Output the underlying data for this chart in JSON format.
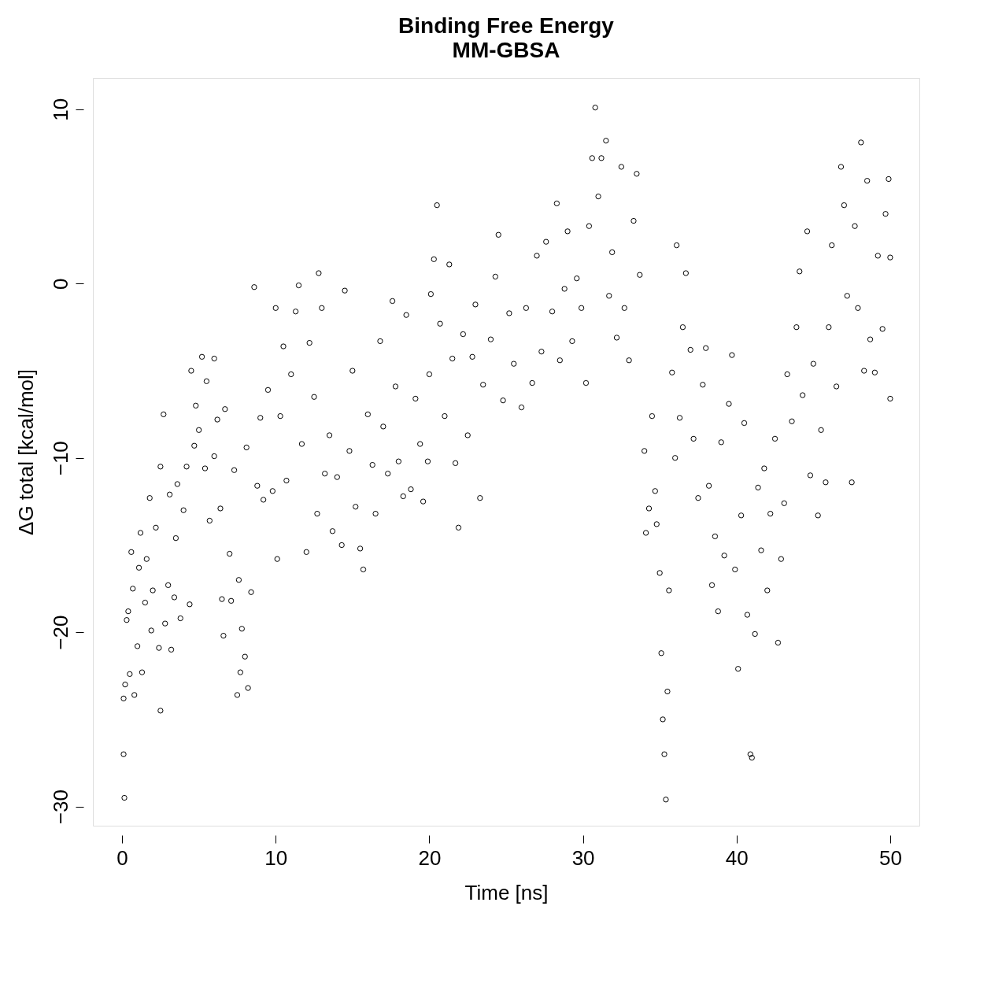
{
  "chart_data": {
    "type": "scatter",
    "title": "Binding Free Energy",
    "subtitle": "MM-GBSA",
    "xlabel": "Time [ns]",
    "ylabel": "ΔG total [kcal/mol]",
    "xlim": [
      -1.9,
      51.9
    ],
    "ylim": [
      -31.1,
      11.8
    ],
    "xticks": [
      0,
      10,
      20,
      30,
      40,
      50
    ],
    "yticks": [
      -30,
      -20,
      -10,
      0,
      10
    ],
    "grid": false,
    "marker": "circle",
    "series": [
      {
        "color": "#000000",
        "x": [
          0.1,
          0.15,
          0.1,
          0.2,
          0.3,
          0.4,
          0.5,
          0.6,
          0.7,
          0.8,
          1.0,
          1.1,
          1.2,
          1.3,
          1.5,
          1.6,
          1.8,
          1.9,
          2.0,
          2.2,
          2.4,
          2.5,
          2.5,
          2.7,
          2.8,
          3.0,
          3.1,
          3.2,
          3.4,
          3.5,
          3.6,
          3.8,
          4.0,
          4.2,
          4.4,
          4.5,
          4.7,
          4.8,
          5.0,
          5.2,
          5.4,
          5.5,
          5.7,
          6.0,
          6.0,
          6.2,
          6.4,
          6.5,
          6.6,
          6.7,
          7.0,
          7.1,
          7.3,
          7.5,
          7.6,
          7.7,
          7.8,
          8.0,
          8.1,
          8.2,
          8.4,
          8.6,
          8.8,
          9.0,
          9.2,
          9.5,
          9.8,
          10.0,
          10.1,
          10.3,
          10.5,
          10.7,
          11.0,
          11.3,
          11.5,
          11.7,
          12.0,
          12.2,
          12.5,
          12.7,
          12.8,
          13.0,
          13.2,
          13.5,
          13.7,
          14.0,
          14.3,
          14.5,
          14.8,
          15.0,
          15.2,
          15.5,
          15.7,
          16.0,
          16.3,
          16.5,
          16.8,
          17.0,
          17.3,
          17.6,
          17.8,
          18.0,
          18.3,
          18.5,
          18.8,
          19.1,
          19.4,
          19.6,
          19.9,
          20.0,
          20.1,
          20.3,
          20.5,
          20.7,
          21.0,
          21.3,
          21.5,
          21.7,
          21.9,
          22.2,
          22.5,
          22.8,
          23.0,
          23.3,
          23.5,
          24.0,
          24.3,
          24.5,
          24.8,
          25.2,
          25.5,
          26.0,
          26.3,
          26.7,
          27.0,
          27.3,
          27.6,
          28.0,
          28.3,
          28.5,
          28.8,
          29.0,
          29.3,
          29.6,
          29.9,
          30.2,
          30.4,
          30.6,
          30.8,
          31.0,
          31.2,
          31.5,
          31.7,
          31.9,
          32.2,
          32.5,
          32.7,
          33.0,
          33.3,
          33.5,
          33.7,
          34.0,
          34.1,
          34.3,
          34.5,
          34.7,
          34.8,
          35.0,
          35.1,
          35.2,
          35.3,
          35.4,
          35.5,
          35.6,
          35.8,
          36.0,
          36.1,
          36.3,
          36.5,
          36.7,
          37.0,
          37.2,
          37.5,
          37.8,
          38.0,
          38.2,
          38.4,
          38.6,
          38.8,
          39.0,
          39.2,
          39.5,
          39.7,
          39.9,
          40.1,
          40.3,
          40.5,
          40.7,
          40.9,
          41.0,
          41.2,
          41.4,
          41.6,
          41.8,
          42.0,
          42.2,
          42.5,
          42.7,
          42.9,
          43.1,
          43.3,
          43.6,
          43.9,
          44.1,
          44.3,
          44.6,
          44.8,
          45.0,
          45.3,
          45.5,
          45.8,
          46.0,
          46.2,
          46.5,
          46.8,
          47.0,
          47.2,
          47.5,
          47.7,
          47.9,
          48.1,
          48.3,
          48.5,
          48.7,
          49.0,
          49.2,
          49.5,
          49.7,
          49.9,
          50.0,
          50.0
        ],
        "values": [
          -27,
          -29.5,
          -23.8,
          -23,
          -19.3,
          -18.8,
          -22.4,
          -15.4,
          -17.5,
          -23.6,
          -20.8,
          -16.3,
          -14.3,
          -22.3,
          -18.3,
          -15.8,
          -12.3,
          -19.9,
          -17.6,
          -14,
          -20.9,
          -10.5,
          -24.5,
          -7.5,
          -19.5,
          -17.3,
          -12.1,
          -21,
          -18,
          -14.6,
          -11.5,
          -19.2,
          -13,
          -10.5,
          -18.4,
          -5,
          -9.3,
          -7,
          -8.4,
          -4.2,
          -10.6,
          -5.6,
          -13.6,
          -9.9,
          -4.3,
          -7.8,
          -12.9,
          -18.1,
          -20.2,
          -7.2,
          -15.5,
          -18.2,
          -10.7,
          -23.6,
          -17,
          -22.3,
          -19.8,
          -21.4,
          -9.4,
          -23.2,
          -17.7,
          -0.2,
          -11.6,
          -7.7,
          -12.4,
          -6.1,
          -11.9,
          -1.4,
          -15.8,
          -7.6,
          -3.6,
          -11.3,
          -5.2,
          -1.6,
          -0.1,
          -9.2,
          -15.4,
          -3.4,
          -6.5,
          -13.2,
          0.6,
          -1.4,
          -10.9,
          -8.7,
          -14.2,
          -11.1,
          -15,
          -0.4,
          -9.6,
          -5,
          -12.8,
          -15.2,
          -16.4,
          -7.5,
          -10.4,
          -13.2,
          -3.3,
          -8.2,
          -10.9,
          -1,
          -5.9,
          -10.2,
          -12.2,
          -1.8,
          -11.8,
          -6.6,
          -9.2,
          -12.5,
          -10.2,
          -5.2,
          -0.6,
          1.4,
          4.5,
          -2.3,
          -7.6,
          1.1,
          -4.3,
          -10.3,
          -14,
          -2.9,
          -8.7,
          -4.2,
          -1.2,
          -12.3,
          -5.8,
          -3.2,
          0.4,
          2.8,
          -6.7,
          -1.7,
          -4.6,
          -7.1,
          -1.4,
          -5.7,
          1.6,
          -3.9,
          2.4,
          -1.6,
          4.6,
          -4.4,
          -0.3,
          3,
          -3.3,
          0.3,
          -1.4,
          -5.7,
          3.3,
          7.2,
          10.1,
          5,
          7.2,
          8.2,
          -0.7,
          1.8,
          -3.1,
          6.7,
          -1.4,
          -4.4,
          3.6,
          6.3,
          0.5,
          -9.6,
          -14.3,
          -12.9,
          -7.6,
          -11.9,
          -13.8,
          -16.6,
          -21.2,
          -25,
          -27,
          -29.6,
          -23.4,
          -17.6,
          -5.1,
          -10,
          2.2,
          -7.7,
          -2.5,
          0.6,
          -3.8,
          -8.9,
          -12.3,
          -5.8,
          -3.7,
          -11.6,
          -17.3,
          -14.5,
          -18.8,
          -9.1,
          -15.6,
          -6.9,
          -4.1,
          -16.4,
          -22.1,
          -13.3,
          -8,
          -19,
          -27,
          -27.2,
          -20.1,
          -11.7,
          -15.3,
          -10.6,
          -17.6,
          -13.2,
          -8.9,
          -20.6,
          -15.8,
          -12.6,
          -5.2,
          -7.9,
          -2.5,
          0.7,
          -6.4,
          3,
          -11,
          -4.6,
          -13.3,
          -8.4,
          -11.4,
          -2.5,
          2.2,
          -5.9,
          6.7,
          4.5,
          -0.7,
          -11.4,
          3.3,
          -1.4,
          8.1,
          -5,
          5.9,
          -3.2,
          -5.1,
          1.6,
          -2.6,
          4,
          6,
          -6.6,
          1.5
        ]
      }
    ]
  }
}
